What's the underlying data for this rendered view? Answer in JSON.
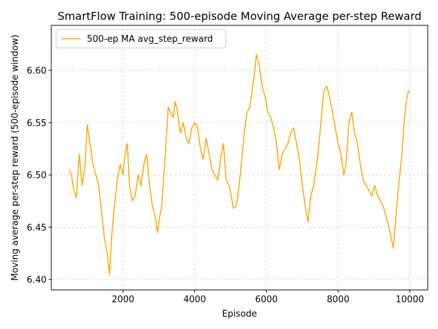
{
  "chart_data": {
    "type": "line",
    "title": "SmartFlow Training: 500-episode Moving Average per-step Reward",
    "xlabel": "Episode",
    "ylabel": "Moving average per-step reward (500-episode window)",
    "xlim": [
      0,
      10500
    ],
    "ylim": [
      6.39,
      6.643
    ],
    "xticks": [
      2000,
      4000,
      6000,
      8000,
      10000
    ],
    "xtick_labels": [
      "2000",
      "4000",
      "6000",
      "8000",
      "10000"
    ],
    "yticks": [
      6.4,
      6.45,
      6.5,
      6.55,
      6.6
    ],
    "ytick_labels": [
      "6.40",
      "6.45",
      "6.50",
      "6.55",
      "6.60"
    ],
    "grid": true,
    "legend_position": "top-left",
    "series": [
      {
        "name": "500-ep MA avg_step_reward",
        "color": "#ffa500",
        "x": [
          500,
          560,
          620,
          700,
          780,
          860,
          940,
          1000,
          1080,
          1160,
          1240,
          1320,
          1400,
          1480,
          1560,
          1620,
          1680,
          1760,
          1840,
          1920,
          2000,
          2060,
          2120,
          2180,
          2260,
          2340,
          2420,
          2500,
          2580,
          2660,
          2740,
          2820,
          2900,
          2960,
          3020,
          3080,
          3140,
          3200,
          3260,
          3320,
          3400,
          3460,
          3520,
          3600,
          3680,
          3760,
          3840,
          3920,
          4000,
          4080,
          4160,
          4240,
          4320,
          4400,
          4480,
          4560,
          4640,
          4720,
          4800,
          4880,
          4960,
          5020,
          5080,
          5160,
          5240,
          5300,
          5380,
          5460,
          5540,
          5600,
          5660,
          5720,
          5800,
          5880,
          5960,
          6040,
          6120,
          6200,
          6280,
          6360,
          6440,
          6520,
          6600,
          6680,
          6760,
          6840,
          6920,
          7000,
          7080,
          7160,
          7240,
          7320,
          7380,
          7440,
          7520,
          7600,
          7680,
          7760,
          7840,
          7920,
          8000,
          8080,
          8160,
          8220,
          8300,
          8380,
          8460,
          8540,
          8620,
          8700,
          8780,
          8860,
          8940,
          9020,
          9100,
          9180,
          9260,
          9340,
          9420,
          9480,
          9540,
          9600,
          9660,
          9720,
          9780,
          9840,
          9900,
          9960,
          10000
        ],
        "values": [
          6.505,
          6.5,
          6.487,
          6.478,
          6.52,
          6.49,
          6.508,
          6.548,
          6.53,
          6.51,
          6.5,
          6.49,
          6.465,
          6.44,
          6.425,
          6.405,
          6.44,
          6.47,
          6.495,
          6.51,
          6.5,
          6.52,
          6.53,
          6.49,
          6.475,
          6.48,
          6.5,
          6.49,
          6.51,
          6.52,
          6.49,
          6.47,
          6.46,
          6.445,
          6.46,
          6.47,
          6.5,
          6.53,
          6.565,
          6.56,
          6.555,
          6.57,
          6.56,
          6.54,
          6.55,
          6.535,
          6.53,
          6.545,
          6.55,
          6.545,
          6.525,
          6.515,
          6.535,
          6.52,
          6.505,
          6.5,
          6.495,
          6.515,
          6.53,
          6.495,
          6.49,
          6.48,
          6.468,
          6.47,
          6.49,
          6.51,
          6.54,
          6.56,
          6.565,
          6.58,
          6.595,
          6.615,
          6.605,
          6.585,
          6.575,
          6.56,
          6.555,
          6.545,
          6.53,
          6.505,
          6.52,
          6.525,
          6.53,
          6.54,
          6.545,
          6.53,
          6.515,
          6.49,
          6.47,
          6.455,
          6.48,
          6.49,
          6.505,
          6.52,
          6.55,
          6.58,
          6.585,
          6.575,
          6.56,
          6.545,
          6.53,
          6.52,
          6.5,
          6.51,
          6.55,
          6.56,
          6.54,
          6.53,
          6.51,
          6.495,
          6.49,
          6.485,
          6.48,
          6.49,
          6.48,
          6.475,
          6.47,
          6.46,
          6.45,
          6.44,
          6.43,
          6.455,
          6.48,
          6.5,
          6.52,
          6.55,
          6.57,
          6.58,
          6.58
        ]
      }
    ]
  }
}
